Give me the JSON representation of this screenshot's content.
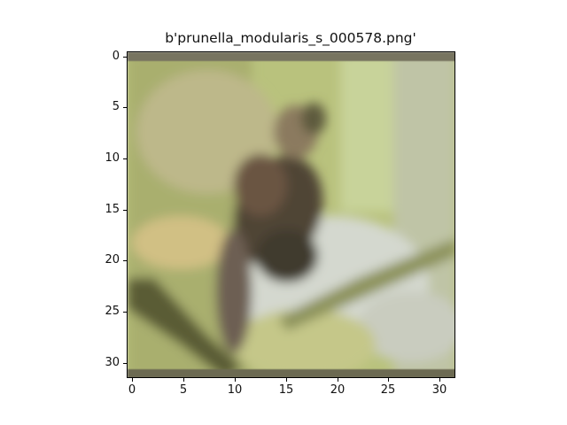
{
  "title": "b'prunella_modularis_s_000578.png'",
  "image_description_icon": "bird-photo",
  "axis": {
    "x_ticks": [
      "0",
      "5",
      "10",
      "15",
      "20",
      "25",
      "30"
    ],
    "y_ticks": [
      "0",
      "5",
      "10",
      "15",
      "20",
      "25",
      "30"
    ]
  }
}
